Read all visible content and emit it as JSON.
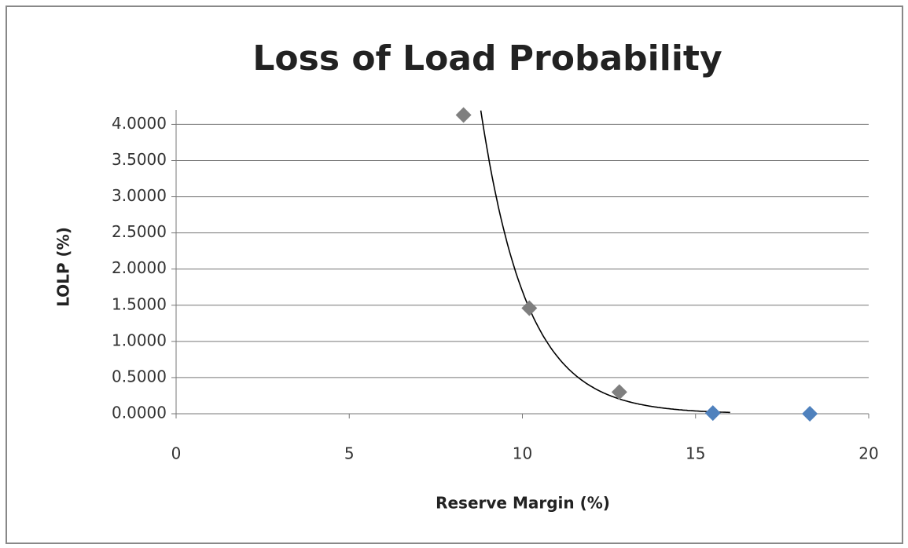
{
  "chart_data": {
    "type": "scatter",
    "title": "Loss of Load Probability",
    "x_label": "Reserve Margin (%)",
    "y_label": "LOLP (%)",
    "x": [
      8.3,
      10.2,
      12.8,
      15.5,
      18.3
    ],
    "values": [
      4.13,
      1.46,
      0.3,
      0.01,
      0.0
    ],
    "colors": [
      "#7f7f7f",
      "#7f7f7f",
      "#7f7f7f",
      "#4f81bd",
      "#4f81bd"
    ],
    "xlim": [
      0,
      20
    ],
    "xticks": [
      0,
      5,
      10,
      15,
      20
    ],
    "ylim": [
      0,
      4.2
    ],
    "yticks": [
      {
        "value": 0,
        "label": "0.0000"
      },
      {
        "value": 0.5,
        "label": "0.5000"
      },
      {
        "value": 1,
        "label": "1.0000"
      },
      {
        "value": 1.5,
        "label": "1.5000"
      },
      {
        "value": 2,
        "label": "2.0000"
      },
      {
        "value": 2.5,
        "label": "2.5000"
      },
      {
        "value": 3,
        "label": "3.0000"
      },
      {
        "value": 3.5,
        "label": "3.5000"
      },
      {
        "value": 4,
        "label": "4.0000"
      }
    ],
    "grid": true,
    "trendline": {
      "type": "exponential",
      "a": 3220,
      "b": 0.755,
      "x_range": [
        8.8,
        16
      ],
      "color": "#000000"
    }
  }
}
